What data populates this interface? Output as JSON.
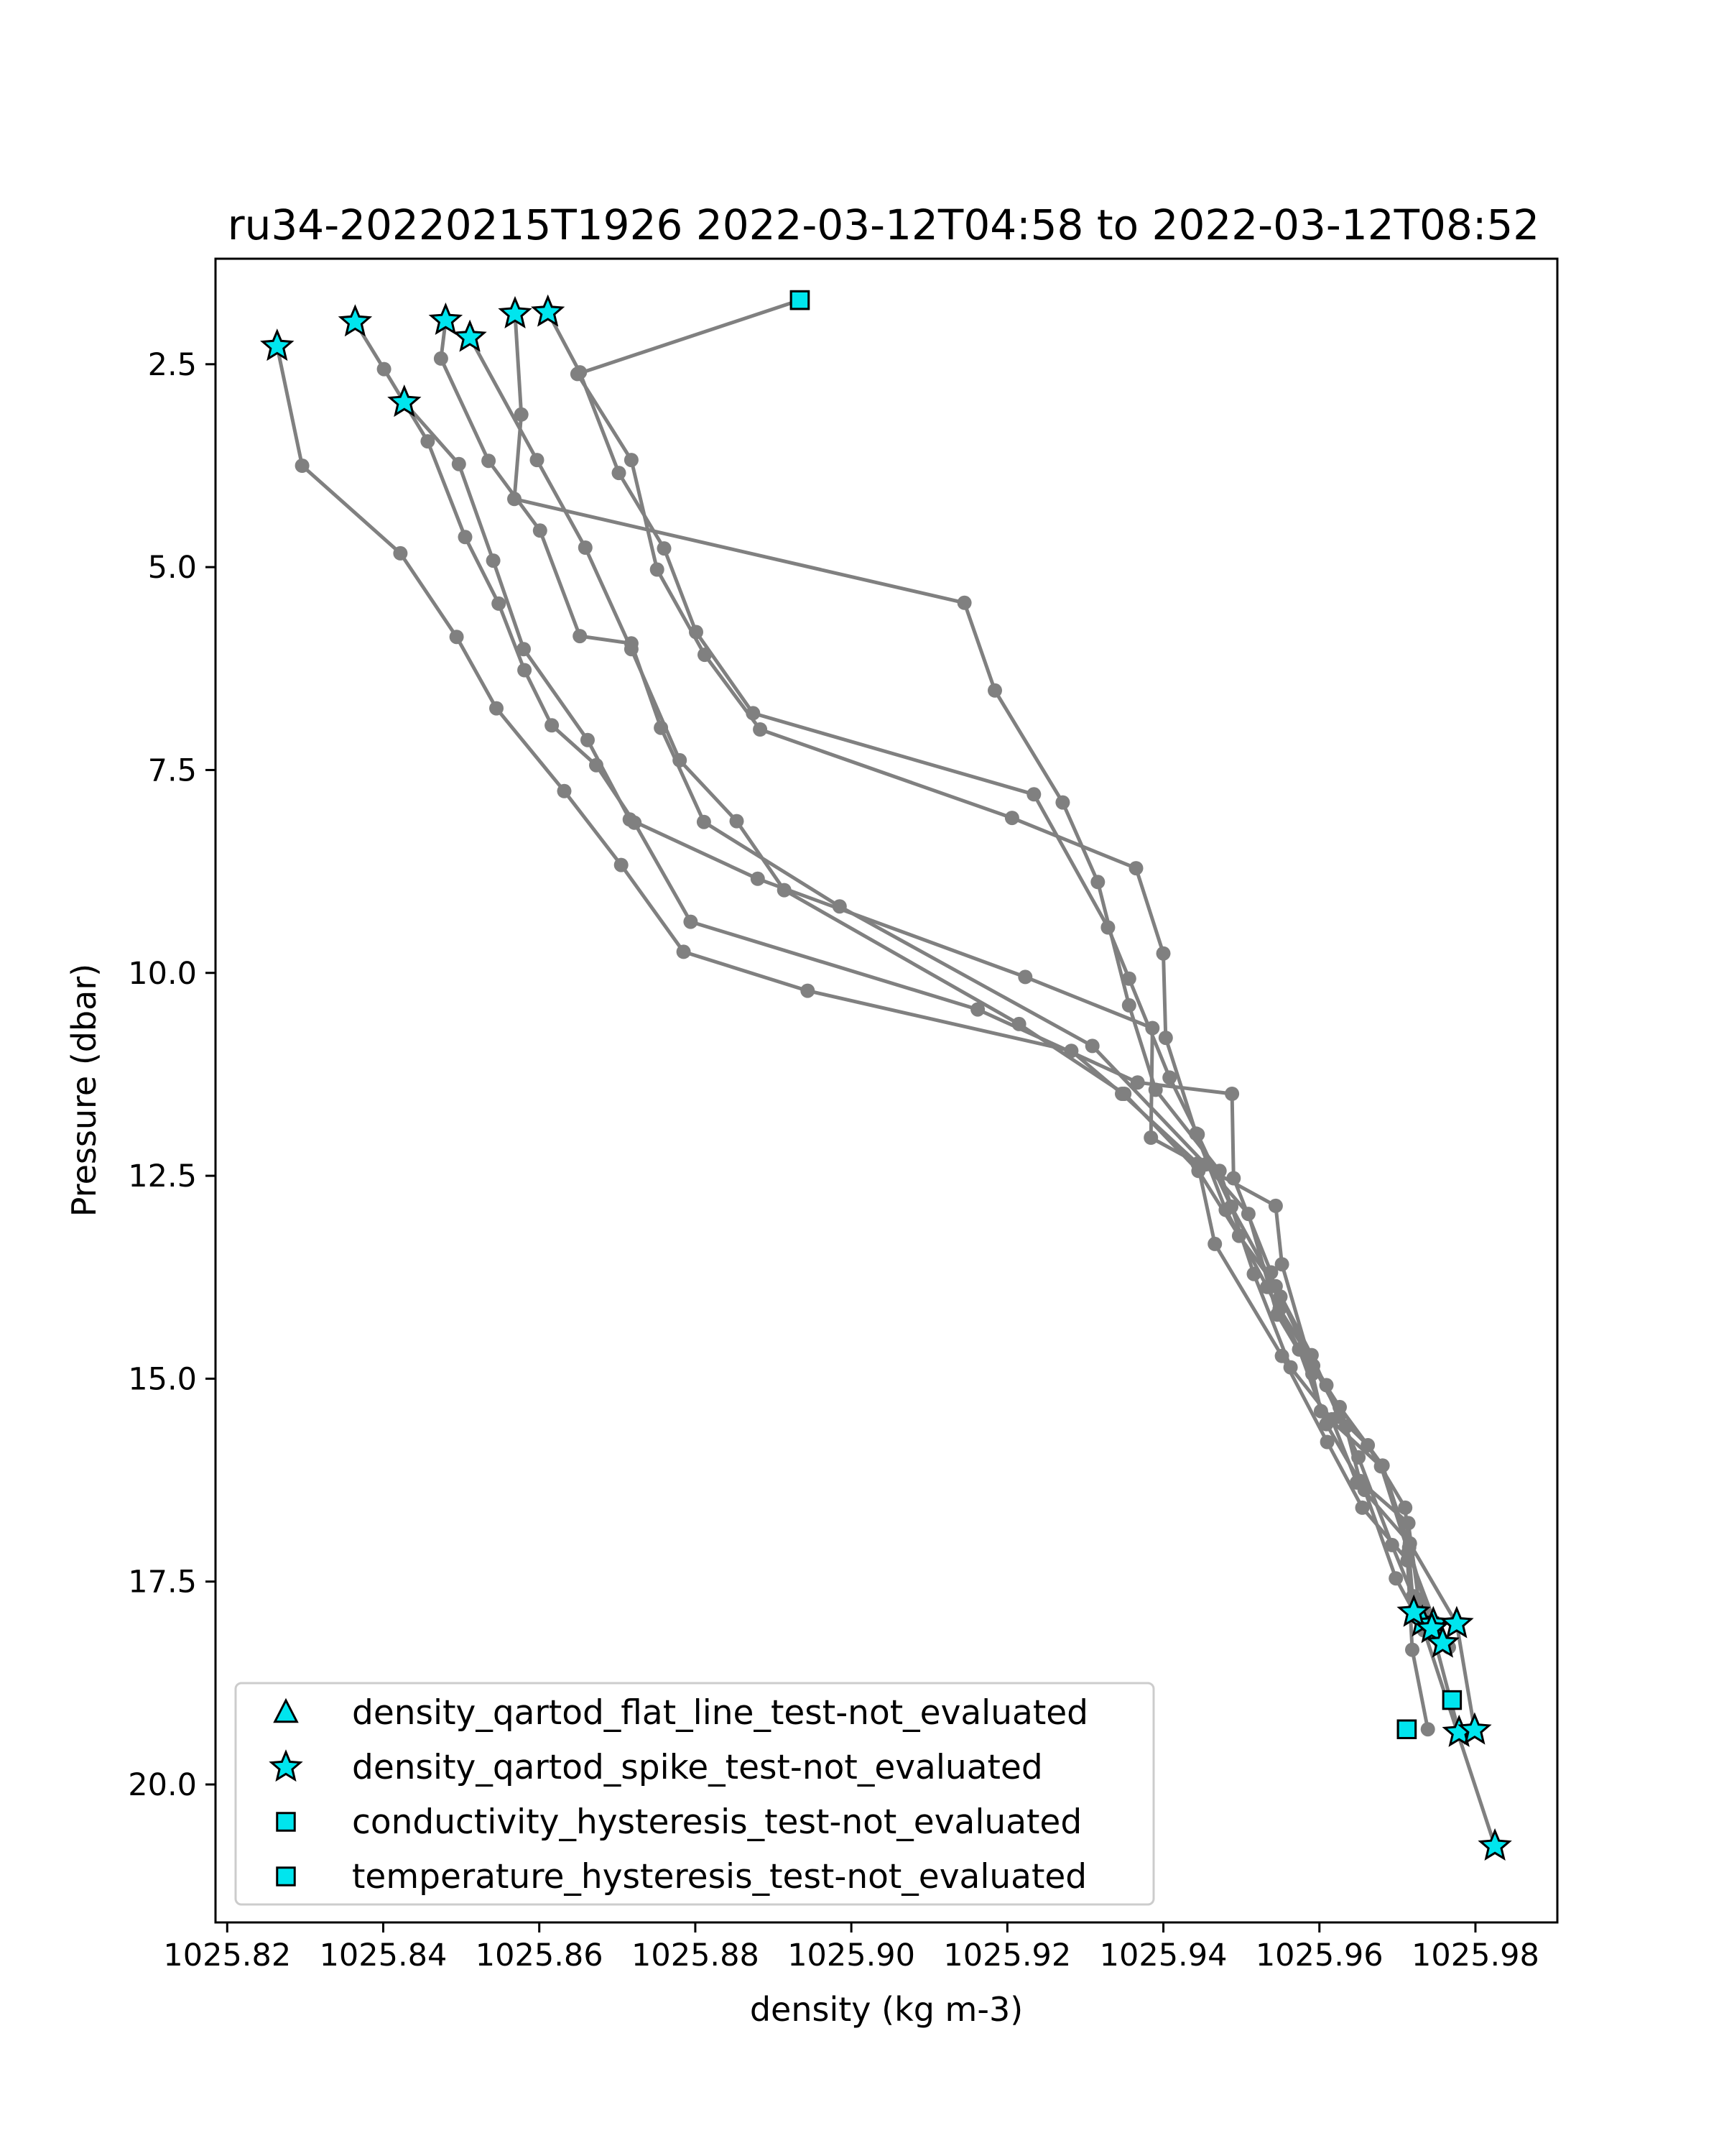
{
  "chart_data": {
    "type": "line",
    "title": "ru34-20220215T1926 2022-03-12T04:58 to 2022-03-12T08:52",
    "xlabel": "density (kg m-3)",
    "ylabel": "Pressure (dbar)",
    "xlim": [
      1025.8185,
      1025.9905
    ],
    "ylim": [
      21.7,
      1.2
    ],
    "y_inverted": true,
    "xticks": [
      "1025.82",
      "1025.84",
      "1025.86",
      "1025.88",
      "1025.90",
      "1025.92",
      "1025.94",
      "1025.96",
      "1025.98"
    ],
    "yticks": [
      "2.5",
      "5.0",
      "7.5",
      "10.0",
      "12.5",
      "15.0",
      "17.5",
      "20.0"
    ],
    "grid": false,
    "legend_position": "lower-left",
    "line_color": "#808080",
    "marker_color": "#00e5ee",
    "series": [
      {
        "points": [
          [
            1025.8264,
            2.28
          ],
          [
            1025.8296,
            3.75
          ],
          [
            1025.8422,
            4.83
          ],
          [
            1025.8494,
            5.86
          ],
          [
            1025.8545,
            6.74
          ],
          [
            1025.8632,
            7.76
          ],
          [
            1025.8705,
            8.67
          ],
          [
            1025.8785,
            9.74
          ],
          [
            1025.8944,
            10.22
          ],
          [
            1025.9282,
            10.96
          ],
          [
            1025.9347,
            11.49
          ],
          [
            1025.9444,
            12.35
          ],
          [
            1025.9466,
            13.34
          ],
          [
            1025.9552,
            14.72
          ],
          [
            1025.961,
            15.78
          ],
          [
            1025.9655,
            16.59
          ],
          [
            1025.9713,
            17.24
          ],
          [
            1025.9719,
            18.34
          ],
          [
            1025.9739,
            19.32
          ]
        ]
      },
      {
        "points": [
          [
            1025.8364,
            1.98
          ],
          [
            1025.8401,
            2.56
          ],
          [
            1025.8457,
            3.45
          ],
          [
            1025.8505,
            4.63
          ],
          [
            1025.8548,
            5.45
          ],
          [
            1025.8581,
            6.27
          ],
          [
            1025.8616,
            6.95
          ],
          [
            1025.8673,
            7.44
          ],
          [
            1025.8722,
            8.15
          ],
          [
            1025.8794,
            9.37
          ],
          [
            1025.9162,
            10.45
          ],
          [
            1025.9367,
            11.35
          ],
          [
            1025.9488,
            11.49
          ],
          [
            1025.949,
            12.53
          ],
          [
            1025.9538,
            13.69
          ],
          [
            1025.9549,
            14.14
          ],
          [
            1025.9609,
            15.08
          ],
          [
            1025.965,
            15.97
          ],
          [
            1025.9693,
            17.05
          ],
          [
            1025.972,
            17.68
          ],
          [
            1025.9732,
            18.0
          ]
        ]
      },
      {
        "points": [
          [
            1025.8427,
            2.97
          ],
          [
            1025.8497,
            3.73
          ],
          [
            1025.8541,
            4.92
          ],
          [
            1025.858,
            6.01
          ],
          [
            1025.8662,
            7.13
          ],
          [
            1025.8716,
            8.11
          ],
          [
            1025.888,
            8.84
          ],
          [
            1025.9223,
            10.05
          ],
          [
            1025.9386,
            10.68
          ],
          [
            1025.9384,
            12.03
          ],
          [
            1025.9544,
            12.87
          ],
          [
            1025.9552,
            13.59
          ],
          [
            1025.9587,
            14.75
          ],
          [
            1025.9634,
            15.59
          ],
          [
            1025.9652,
            16.26
          ],
          [
            1025.9714,
            16.78
          ],
          [
            1025.9727,
            17.72
          ],
          [
            1025.9746,
            18.02
          ]
        ]
      },
      {
        "points": [
          [
            1025.848,
            1.96
          ],
          [
            1025.8474,
            2.43
          ],
          [
            1025.8535,
            3.69
          ],
          [
            1025.8601,
            4.55
          ],
          [
            1025.8652,
            5.85
          ],
          [
            1025.8718,
            5.94
          ],
          [
            1025.8756,
            6.98
          ],
          [
            1025.8811,
            8.14
          ],
          [
            1025.8985,
            9.18
          ],
          [
            1025.9309,
            10.9
          ],
          [
            1025.9454,
            12.36
          ],
          [
            1025.9509,
            12.97
          ],
          [
            1025.9546,
            14.21
          ],
          [
            1025.9591,
            14.94
          ],
          [
            1025.9602,
            15.4
          ],
          [
            1025.9679,
            16.08
          ],
          [
            1025.9714,
            17.14
          ],
          [
            1025.9758,
            18.26
          ]
        ]
      },
      {
        "points": [
          [
            1025.8511,
            2.17
          ],
          [
            1025.8597,
            3.68
          ],
          [
            1025.8659,
            4.76
          ],
          [
            1025.8718,
            6.01
          ],
          [
            1025.878,
            7.38
          ],
          [
            1025.8853,
            8.13
          ],
          [
            1025.8914,
            8.98
          ],
          [
            1025.9215,
            10.63
          ],
          [
            1025.935,
            11.49
          ],
          [
            1025.9445,
            12.44
          ],
          [
            1025.9497,
            13.24
          ],
          [
            1025.9544,
            13.86
          ],
          [
            1025.959,
            14.71
          ],
          [
            1025.9625,
            15.47
          ],
          [
            1025.9662,
            15.82
          ],
          [
            1025.971,
            16.59
          ],
          [
            1025.9721,
            17.88
          ],
          [
            1025.9766,
            18.31
          ]
        ]
      },
      {
        "points": [
          [
            1025.8569,
            1.88
          ],
          [
            1025.8577,
            3.12
          ],
          [
            1025.8568,
            4.16
          ],
          [
            1025.9145,
            5.44
          ],
          [
            1025.9184,
            6.52
          ],
          [
            1025.9271,
            7.9
          ],
          [
            1025.9316,
            8.88
          ],
          [
            1025.9356,
            10.4
          ],
          [
            1025.939,
            11.44
          ],
          [
            1025.9472,
            12.44
          ],
          [
            1025.9516,
            13.71
          ],
          [
            1025.9563,
            14.86
          ],
          [
            1025.9616,
            15.5
          ],
          [
            1025.9648,
            16.28
          ],
          [
            1025.9716,
            17.03
          ],
          [
            1025.9776,
            18.02
          ],
          [
            1025.9799,
            19.33
          ]
        ]
      },
      {
        "points": [
          [
            1025.8611,
            1.86
          ],
          [
            1025.8652,
            2.6
          ],
          [
            1025.8702,
            3.84
          ],
          [
            1025.876,
            4.77
          ],
          [
            1025.8801,
            5.8
          ],
          [
            1025.8874,
            6.8
          ],
          [
            1025.9234,
            7.8
          ],
          [
            1025.9329,
            9.44
          ],
          [
            1025.9356,
            10.07
          ],
          [
            1025.9408,
            11.29
          ],
          [
            1025.9444,
            11.99
          ],
          [
            1025.9487,
            12.88
          ],
          [
            1025.955,
            13.99
          ],
          [
            1025.9592,
            14.84
          ],
          [
            1025.9626,
            15.35
          ],
          [
            1025.9681,
            16.07
          ],
          [
            1025.9715,
            17.08
          ],
          [
            1025.9744,
            18.08
          ],
          [
            1025.9779,
            19.36
          ]
        ]
      },
      {
        "points": [
          [
            1025.8934,
            1.71
          ],
          [
            1025.8649,
            2.62
          ],
          [
            1025.8718,
            3.68
          ],
          [
            1025.8751,
            5.03
          ],
          [
            1025.8812,
            6.08
          ],
          [
            1025.8883,
            7.0
          ],
          [
            1025.9206,
            8.09
          ],
          [
            1025.9365,
            8.71
          ],
          [
            1025.94,
            9.76
          ],
          [
            1025.9403,
            10.8
          ],
          [
            1025.9442,
            11.98
          ],
          [
            1025.948,
            12.92
          ],
          [
            1025.9533,
            13.87
          ],
          [
            1025.9574,
            14.64
          ],
          [
            1025.9609,
            15.56
          ],
          [
            1025.9658,
            16.37
          ],
          [
            1025.9698,
            17.46
          ],
          [
            1025.9734,
            18.1
          ],
          [
            1025.9825,
            20.76
          ]
        ]
      }
    ],
    "flagged": [
      {
        "label": "density_qartod_flat_line_test-not_evaluated",
        "marker": "triangle",
        "points": []
      },
      {
        "label": "density_qartod_spike_test-not_evaluated",
        "marker": "star",
        "points": [
          [
            1025.8264,
            2.28
          ],
          [
            1025.8364,
            1.98
          ],
          [
            1025.8427,
            2.97
          ],
          [
            1025.848,
            1.96
          ],
          [
            1025.8511,
            2.17
          ],
          [
            1025.8569,
            1.88
          ],
          [
            1025.8611,
            1.86
          ],
          [
            1025.9732,
            18.0
          ],
          [
            1025.9746,
            18.02
          ],
          [
            1025.9721,
            17.88
          ],
          [
            1025.9744,
            18.08
          ],
          [
            1025.9758,
            18.26
          ],
          [
            1025.9776,
            18.02
          ],
          [
            1025.9779,
            19.36
          ],
          [
            1025.9799,
            19.33
          ],
          [
            1025.9825,
            20.76
          ]
        ]
      },
      {
        "label": "conductivity_hysteresis_test-not_evaluated",
        "marker": "square",
        "points": [
          [
            1025.8934,
            1.71
          ],
          [
            1025.9712,
            19.32
          ],
          [
            1025.977,
            18.96
          ]
        ]
      },
      {
        "label": "temperature_hysteresis_test-not_evaluated",
        "marker": "square",
        "points": [
          [
            1025.8934,
            1.71
          ],
          [
            1025.9712,
            19.32
          ]
        ]
      }
    ]
  }
}
